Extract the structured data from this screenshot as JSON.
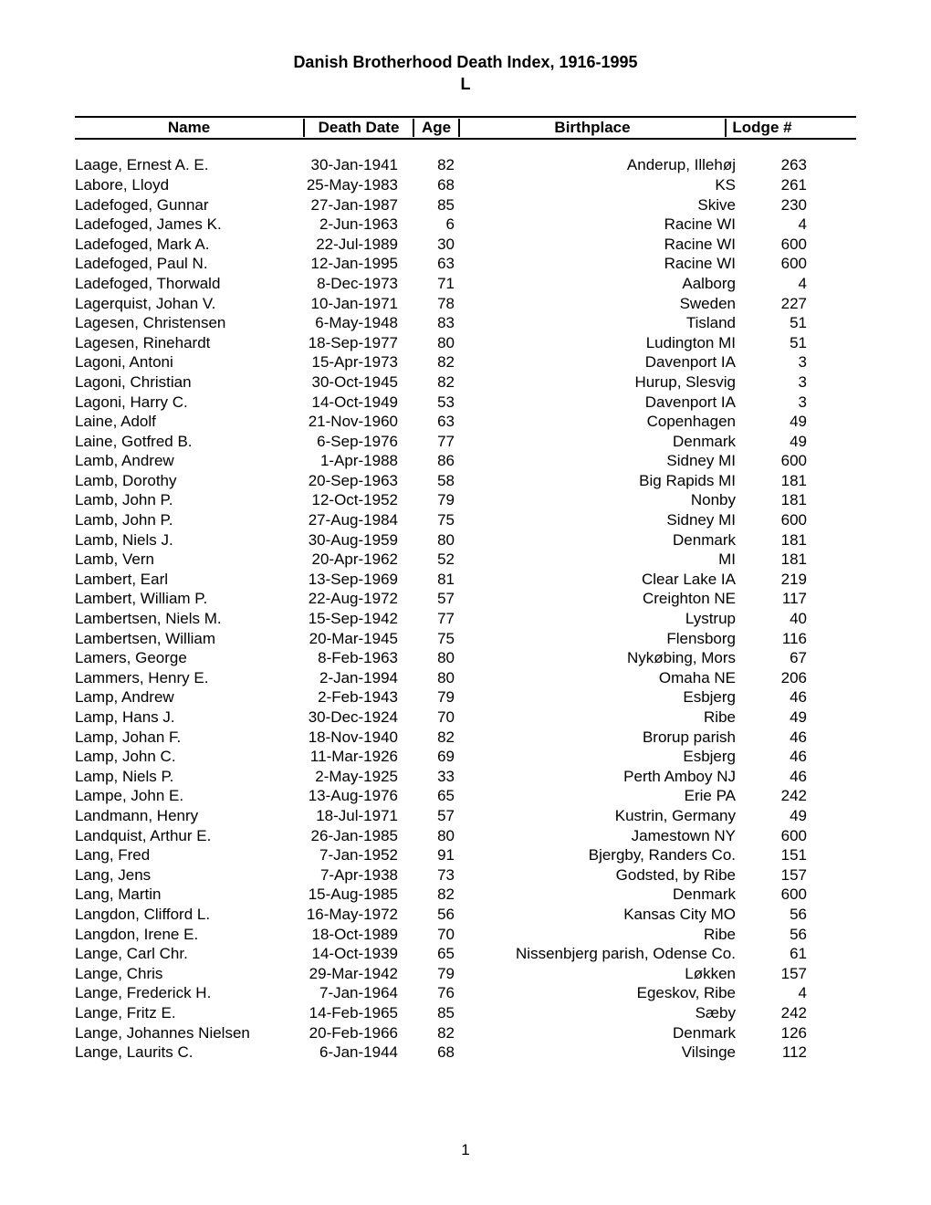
{
  "title_line1": "Danish Brotherhood Death Index, 1916-1995",
  "title_line2": "L",
  "headers": {
    "name": "Name",
    "date": "Death Date",
    "age": "Age",
    "bp": "Birthplace",
    "lodge": "Lodge #"
  },
  "rows": [
    {
      "name": "Laage, Ernest A. E.",
      "date": "30-Jan-1941",
      "age": "82",
      "bp": "Anderup, Illehøj",
      "lodge": "263"
    },
    {
      "name": "Labore, Lloyd",
      "date": "25-May-1983",
      "age": "68",
      "bp": "KS",
      "lodge": "261"
    },
    {
      "name": "Ladefoged, Gunnar",
      "date": "27-Jan-1987",
      "age": "85",
      "bp": "Skive",
      "lodge": "230"
    },
    {
      "name": "Ladefoged, James K.",
      "date": "2-Jun-1963",
      "age": "6",
      "bp": "Racine WI",
      "lodge": "4"
    },
    {
      "name": "Ladefoged, Mark A.",
      "date": "22-Jul-1989",
      "age": "30",
      "bp": "Racine WI",
      "lodge": "600"
    },
    {
      "name": "Ladefoged, Paul N.",
      "date": "12-Jan-1995",
      "age": "63",
      "bp": "Racine WI",
      "lodge": "600"
    },
    {
      "name": "Ladefoged, Thorwald",
      "date": "8-Dec-1973",
      "age": "71",
      "bp": "Aalborg",
      "lodge": "4"
    },
    {
      "name": "Lagerquist, Johan V.",
      "date": "10-Jan-1971",
      "age": "78",
      "bp": "Sweden",
      "lodge": "227"
    },
    {
      "name": "Lagesen, Christensen",
      "date": "6-May-1948",
      "age": "83",
      "bp": "Tisland",
      "lodge": "51"
    },
    {
      "name": "Lagesen, Rinehardt",
      "date": "18-Sep-1977",
      "age": "80",
      "bp": "Ludington MI",
      "lodge": "51"
    },
    {
      "name": "Lagoni, Antoni",
      "date": "15-Apr-1973",
      "age": "82",
      "bp": "Davenport IA",
      "lodge": "3"
    },
    {
      "name": "Lagoni, Christian",
      "date": "30-Oct-1945",
      "age": "82",
      "bp": "Hurup, Slesvig",
      "lodge": "3"
    },
    {
      "name": "Lagoni, Harry C.",
      "date": "14-Oct-1949",
      "age": "53",
      "bp": "Davenport IA",
      "lodge": "3"
    },
    {
      "name": "Laine, Adolf",
      "date": "21-Nov-1960",
      "age": "63",
      "bp": "Copenhagen",
      "lodge": "49"
    },
    {
      "name": "Laine, Gotfred B.",
      "date": "6-Sep-1976",
      "age": "77",
      "bp": "Denmark",
      "lodge": "49"
    },
    {
      "name": "Lamb, Andrew",
      "date": "1-Apr-1988",
      "age": "86",
      "bp": "Sidney MI",
      "lodge": "600"
    },
    {
      "name": "Lamb, Dorothy",
      "date": "20-Sep-1963",
      "age": "58",
      "bp": "Big Rapids MI",
      "lodge": "181"
    },
    {
      "name": "Lamb, John P.",
      "date": "12-Oct-1952",
      "age": "79",
      "bp": "Nonby",
      "lodge": "181"
    },
    {
      "name": "Lamb, John P.",
      "date": "27-Aug-1984",
      "age": "75",
      "bp": "Sidney MI",
      "lodge": "600"
    },
    {
      "name": "Lamb, Niels J.",
      "date": "30-Aug-1959",
      "age": "80",
      "bp": "Denmark",
      "lodge": "181"
    },
    {
      "name": "Lamb, Vern",
      "date": "20-Apr-1962",
      "age": "52",
      "bp": "MI",
      "lodge": "181"
    },
    {
      "name": "Lambert, Earl",
      "date": "13-Sep-1969",
      "age": "81",
      "bp": "Clear Lake IA",
      "lodge": "219"
    },
    {
      "name": "Lambert, William P.",
      "date": "22-Aug-1972",
      "age": "57",
      "bp": "Creighton NE",
      "lodge": "117"
    },
    {
      "name": "Lambertsen, Niels M.",
      "date": "15-Sep-1942",
      "age": "77",
      "bp": "Lystrup",
      "lodge": "40"
    },
    {
      "name": "Lambertsen, William",
      "date": "20-Mar-1945",
      "age": "75",
      "bp": "Flensborg",
      "lodge": "116"
    },
    {
      "name": "Lamers, George",
      "date": "8-Feb-1963",
      "age": "80",
      "bp": "Nykøbing, Mors",
      "lodge": "67"
    },
    {
      "name": "Lammers, Henry E.",
      "date": "2-Jan-1994",
      "age": "80",
      "bp": "Omaha NE",
      "lodge": "206"
    },
    {
      "name": "Lamp, Andrew",
      "date": "2-Feb-1943",
      "age": "79",
      "bp": "Esbjerg",
      "lodge": "46"
    },
    {
      "name": "Lamp, Hans J.",
      "date": "30-Dec-1924",
      "age": "70",
      "bp": "Ribe",
      "lodge": "49"
    },
    {
      "name": "Lamp, Johan F.",
      "date": "18-Nov-1940",
      "age": "82",
      "bp": "Brorup parish",
      "lodge": "46"
    },
    {
      "name": "Lamp, John C.",
      "date": "11-Mar-1926",
      "age": "69",
      "bp": "Esbjerg",
      "lodge": "46"
    },
    {
      "name": "Lamp, Niels P.",
      "date": "2-May-1925",
      "age": "33",
      "bp": "Perth Amboy NJ",
      "lodge": "46"
    },
    {
      "name": "Lampe, John E.",
      "date": "13-Aug-1976",
      "age": "65",
      "bp": "Erie PA",
      "lodge": "242"
    },
    {
      "name": "Landmann, Henry",
      "date": "18-Jul-1971",
      "age": "57",
      "bp": "Kustrin, Germany",
      "lodge": "49"
    },
    {
      "name": "Landquist, Arthur E.",
      "date": "26-Jan-1985",
      "age": "80",
      "bp": "Jamestown NY",
      "lodge": "600"
    },
    {
      "name": "Lang, Fred",
      "date": "7-Jan-1952",
      "age": "91",
      "bp": "Bjergby, Randers Co.",
      "lodge": "151"
    },
    {
      "name": "Lang, Jens",
      "date": "7-Apr-1938",
      "age": "73",
      "bp": "Godsted, by Ribe",
      "lodge": "157"
    },
    {
      "name": "Lang, Martin",
      "date": "15-Aug-1985",
      "age": "82",
      "bp": "Denmark",
      "lodge": "600"
    },
    {
      "name": "Langdon, Clifford L.",
      "date": "16-May-1972",
      "age": "56",
      "bp": "Kansas City MO",
      "lodge": "56"
    },
    {
      "name": "Langdon, Irene E.",
      "date": "18-Oct-1989",
      "age": "70",
      "bp": "Ribe",
      "lodge": "56"
    },
    {
      "name": "Lange, Carl Chr.",
      "date": "14-Oct-1939",
      "age": "65",
      "bp": "Nissenbjerg parish, Odense Co.",
      "lodge": "61"
    },
    {
      "name": "Lange, Chris",
      "date": "29-Mar-1942",
      "age": "79",
      "bp": "Løkken",
      "lodge": "157"
    },
    {
      "name": "Lange, Frederick H.",
      "date": "7-Jan-1964",
      "age": "76",
      "bp": "Egeskov, Ribe",
      "lodge": "4"
    },
    {
      "name": "Lange, Fritz E.",
      "date": "14-Feb-1965",
      "age": "85",
      "bp": "Sæby",
      "lodge": "242"
    },
    {
      "name": "Lange, Johannes Nielsen",
      "date": "20-Feb-1966",
      "age": "82",
      "bp": "Denmark",
      "lodge": "126"
    },
    {
      "name": "Lange, Laurits C.",
      "date": "6-Jan-1944",
      "age": "68",
      "bp": "Vilsinge",
      "lodge": "112"
    }
  ],
  "page_number": "1"
}
